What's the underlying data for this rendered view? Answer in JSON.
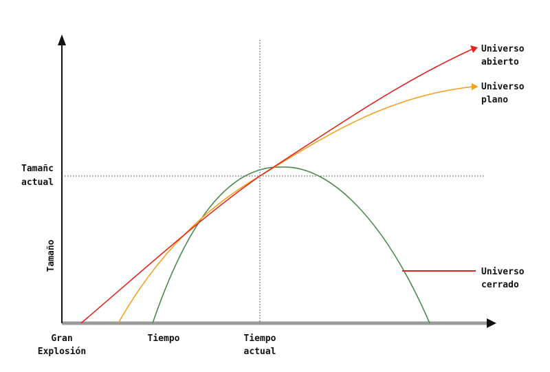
{
  "colors": {
    "open_universe": "#e0231d",
    "flat_universe": "#f5a020",
    "closed_universe": "#4a8a4a",
    "axis": "#111111",
    "baseline": "#9a9a9a",
    "guide": "#333333",
    "closed_pointer": "#e0231d"
  },
  "axes": {
    "y_label": "Tamaño",
    "y_tick_current": [
      "Tamañc",
      "actual"
    ],
    "x_labels": {
      "big_bang": [
        "Gran",
        "Explosión"
      ],
      "time": [
        "Tiempo"
      ],
      "current_time": [
        "Tiempo",
        "actual"
      ]
    }
  },
  "curves": {
    "open": [
      "Universo",
      "abierto"
    ],
    "flat": [
      "Universo",
      "plano"
    ],
    "closed": [
      "Universo",
      "cerrado"
    ]
  }
}
